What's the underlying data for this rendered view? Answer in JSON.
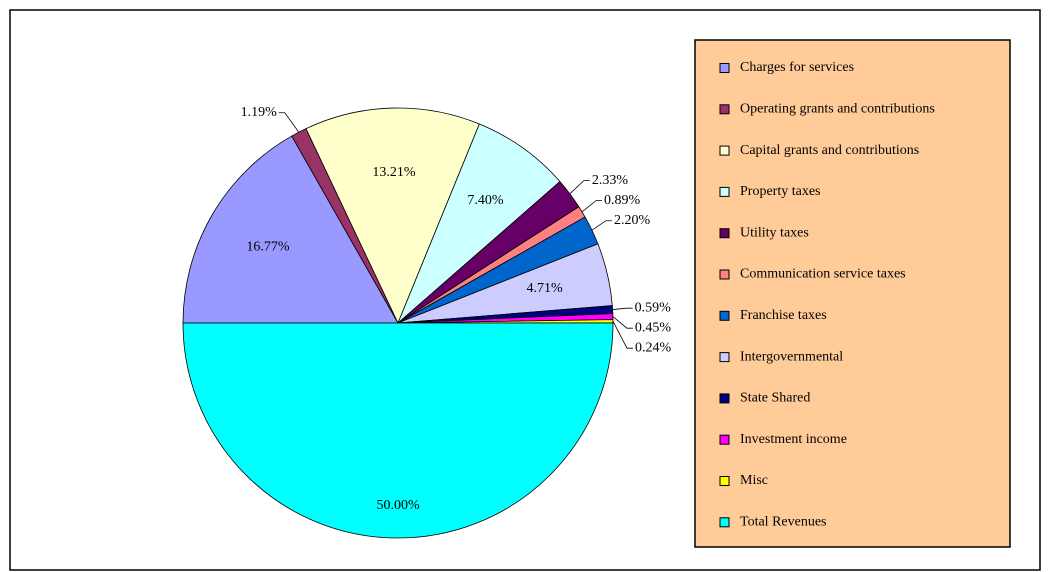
{
  "chart_data": {
    "type": "pie",
    "categories": [
      "Charges for services",
      "Operating grants and contributions",
      "Capital grants and contributions",
      "Property taxes",
      "Utility taxes",
      "Communication service taxes",
      "Franchise taxes",
      "Intergovernmental",
      "State Shared",
      "Investment income",
      "Misc",
      "Total Revenues"
    ],
    "values": [
      16.77,
      1.19,
      13.21,
      7.4,
      2.33,
      0.89,
      2.2,
      4.71,
      0.59,
      0.45,
      0.24,
      50.0
    ],
    "value_labels": [
      "16.77%",
      "1.19%",
      "13.21%",
      "7.40%",
      "2.33%",
      "0.89%",
      "2.20%",
      "4.71%",
      "0.59%",
      "0.45%",
      "0.24%",
      "50.00%"
    ],
    "colors": [
      "#9999ff",
      "#993366",
      "#ffffcc",
      "#ccffff",
      "#660066",
      "#ff8080",
      "#0066cc",
      "#ccccff",
      "#000080",
      "#ff00ff",
      "#ffff00",
      "#00ffff"
    ],
    "legend": "right"
  }
}
